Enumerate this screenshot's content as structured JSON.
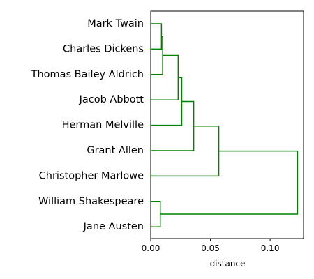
{
  "chart_data": {
    "type": "dendrogram",
    "orientation": "horizontal",
    "xlabel": "distance",
    "xlim": [
      0,
      0.128
    ],
    "x_ticks": [
      {
        "value": 0.0,
        "label": "0.00"
      },
      {
        "value": 0.05,
        "label": "0.05"
      },
      {
        "value": 0.1,
        "label": "0.10"
      }
    ],
    "link_color": "#008000",
    "leaves": [
      "Mark Twain",
      "Charles Dickens",
      "Thomas Bailey Aldrich",
      "Jacob Abbott",
      "Herman Melville",
      "Grant Allen",
      "Christopher Marlowe",
      "William Shakespeare",
      "Jane Austen"
    ],
    "merges": [
      {
        "a": "Mark Twain",
        "b": "Charles Dickens",
        "distance": 0.009
      },
      {
        "a": "cluster-1",
        "b": "Thomas Bailey Aldrich",
        "distance": 0.01
      },
      {
        "a": "cluster-2",
        "b": "Jacob Abbott",
        "distance": 0.023
      },
      {
        "a": "cluster-3",
        "b": "Herman Melville",
        "distance": 0.026
      },
      {
        "a": "cluster-4",
        "b": "Grant Allen",
        "distance": 0.036
      },
      {
        "a": "cluster-5",
        "b": "Christopher Marlowe",
        "distance": 0.057
      },
      {
        "a": "William Shakespeare",
        "b": "Jane Austen",
        "distance": 0.008
      },
      {
        "a": "cluster-6",
        "b": "cluster-7",
        "distance": 0.123
      }
    ]
  }
}
